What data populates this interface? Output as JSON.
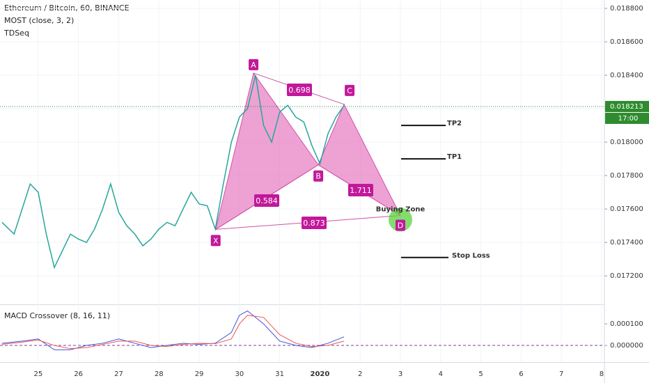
{
  "chart_data": [
    {
      "type": "line",
      "title": "Ethereum / Bitcoin, 60, BINANCE",
      "indicators": [
        "MOST (close, 3, 2)",
        "TDSeq"
      ],
      "x": [
        -0.9,
        -0.6,
        -0.4,
        -0.2,
        0,
        0.2,
        0.4,
        0.6,
        0.8,
        1.0,
        1.2,
        1.4,
        1.6,
        1.8,
        2.0,
        2.2,
        2.4,
        2.6,
        2.8,
        3.0,
        3.2,
        3.4,
        3.6,
        3.8,
        4.0,
        4.2,
        4.4,
        4.6,
        4.8,
        5.0,
        5.2,
        5.4,
        5.6,
        5.8,
        6.0,
        6.2,
        6.4,
        6.6,
        6.8,
        7.0,
        7.2,
        7.4,
        7.6
      ],
      "series": [
        {
          "color": "#26a69a",
          "values": [
            0.01752,
            0.01745,
            0.0176,
            0.01775,
            0.0177,
            0.01745,
            0.01725,
            0.01735,
            0.01745,
            0.01742,
            0.0174,
            0.01748,
            0.0176,
            0.01775,
            0.01758,
            0.0175,
            0.01745,
            0.01738,
            0.01742,
            0.01748,
            0.01752,
            0.0175,
            0.0176,
            0.0177,
            0.01763,
            0.01762,
            0.01748,
            0.01775,
            0.018,
            0.01815,
            0.0182,
            0.0184,
            0.0181,
            0.018,
            0.01818,
            0.01822,
            0.01815,
            0.01812,
            0.01798,
            0.01787,
            0.01805,
            0.01815,
            0.01822
          ]
        }
      ],
      "last_price": {
        "value": 0.018213,
        "label": "0.018213"
      },
      "countdown": "17:00",
      "pattern": {
        "points": [
          {
            "label": "X",
            "x": 4.41,
            "y": 0.017478
          },
          {
            "label": "A",
            "x": 5.35,
            "y": 0.018413
          },
          {
            "label": "B",
            "x": 6.96,
            "y": 0.017864
          },
          {
            "label": "C",
            "x": 7.6,
            "y": 0.018226
          },
          {
            "label": "D",
            "x": 9.0,
            "y": 0.017561
          }
        ],
        "ratios": [
          0.584,
          0.698,
          1.711,
          0.873
        ]
      },
      "buying_zone": "Buying Zone",
      "levels": [
        {
          "label": "TP2",
          "value": 0.0181
        },
        {
          "label": "TP1",
          "value": 0.0179
        },
        {
          "label": "Stop Loss",
          "value": 0.01731
        }
      ],
      "xlim": [
        -0.95,
        14.07
      ],
      "xticks": [
        {
          "value": 0,
          "label": "25"
        },
        {
          "value": 1,
          "label": "26"
        },
        {
          "value": 2,
          "label": "27"
        },
        {
          "value": 3,
          "label": "28"
        },
        {
          "value": 4,
          "label": "29"
        },
        {
          "value": 5,
          "label": "30"
        },
        {
          "value": 6,
          "label": "31"
        },
        {
          "value": 7,
          "label": "2020"
        },
        {
          "value": 8,
          "label": "2"
        },
        {
          "value": 9,
          "label": "3"
        },
        {
          "value": 10,
          "label": "4"
        },
        {
          "value": 11,
          "label": "5"
        },
        {
          "value": 12,
          "label": "6"
        },
        {
          "value": 13,
          "label": "7"
        },
        {
          "value": 14,
          "label": "8"
        }
      ],
      "ylim": [
        0.01703,
        0.01885
      ],
      "yticks": [
        {
          "value": 0.0172,
          "label": "0.017200"
        },
        {
          "value": 0.0174,
          "label": "0.017400"
        },
        {
          "value": 0.0176,
          "label": "0.017600"
        },
        {
          "value": 0.0178,
          "label": "0.017800"
        },
        {
          "value": 0.018,
          "label": "0.018000"
        },
        {
          "value": 0.0182,
          "label": "0.018200"
        },
        {
          "value": 0.0184,
          "label": "0.018400"
        },
        {
          "value": 0.0186,
          "label": "0.018600"
        },
        {
          "value": 0.0188,
          "label": "0.018800"
        }
      ],
      "grid": true
    },
    {
      "type": "line",
      "title": "MACD Crossover (8, 16, 11)",
      "x": [
        -0.9,
        -0.4,
        0,
        0.4,
        0.8,
        1.2,
        1.6,
        2.0,
        2.4,
        2.8,
        3.2,
        3.6,
        4.0,
        4.4,
        4.8,
        5.0,
        5.2,
        5.6,
        6.0,
        6.4,
        6.8,
        7.2,
        7.6
      ],
      "series": [
        {
          "color": "#3f51d8",
          "values": [
            1e-05,
            2e-05,
            3e-05,
            -2e-05,
            -2e-05,
            0,
            1e-05,
            3e-05,
            1e-05,
            -1e-05,
            0,
            1e-05,
            5e-06,
            1e-05,
            6e-05,
            0.00014,
            0.00016,
            0.0001,
            2e-05,
            0,
            -1e-05,
            1e-05,
            4e-05
          ]
        },
        {
          "color": "#ef5350",
          "values": [
            5e-06,
            1.5e-05,
            2.5e-05,
            0,
            -1.5e-05,
            -1e-05,
            5e-06,
            2e-05,
            2e-05,
            0,
            -5e-06,
            5e-06,
            1e-05,
            8e-06,
            3e-05,
            0.0001,
            0.00014,
            0.00013,
            5e-05,
            1e-05,
            -5e-06,
            0,
            2e-05
          ]
        }
      ],
      "ylim": [
        -7.74e-05,
        0.000181
      ],
      "yticks": [
        {
          "value": 0,
          "label": "0.000000"
        },
        {
          "value": 0.0001,
          "label": "0.000100"
        }
      ]
    }
  ]
}
